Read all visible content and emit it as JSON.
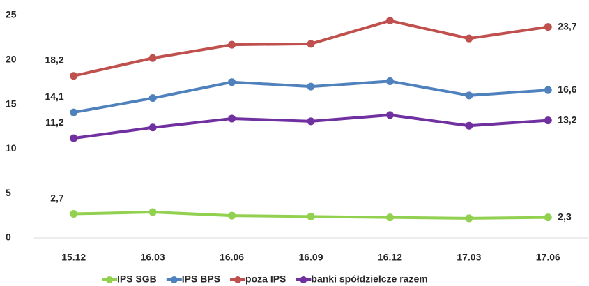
{
  "chart_data": {
    "type": "line",
    "categories": [
      "15.12",
      "16.03",
      "16.06",
      "16.09",
      "16.12",
      "17.03",
      "17.06"
    ],
    "series": [
      {
        "name": "IPS SGB",
        "color": "#92d050",
        "values": [
          2.7,
          2.9,
          2.5,
          2.4,
          2.3,
          2.2,
          2.3
        ],
        "value_labels": [
          "2,7",
          null,
          null,
          null,
          null,
          null,
          "2,3"
        ]
      },
      {
        "name": "IPS BPS",
        "color": "#4f81bd",
        "values": [
          14.1,
          15.7,
          17.5,
          17.0,
          17.6,
          16.0,
          16.6
        ],
        "value_labels": [
          "14,1",
          null,
          null,
          null,
          null,
          null,
          "16,6"
        ]
      },
      {
        "name": "poza IPS",
        "color": "#c0504d",
        "values": [
          18.2,
          20.2,
          21.7,
          21.8,
          24.4,
          22.4,
          23.7
        ],
        "value_labels": [
          "18,2",
          null,
          null,
          null,
          null,
          null,
          "23,7"
        ]
      },
      {
        "name": "banki spółdzielcze razem",
        "color": "#7030a0",
        "values": [
          11.2,
          12.4,
          13.4,
          13.1,
          13.8,
          12.6,
          13.2
        ],
        "value_labels": [
          "11,2",
          null,
          null,
          null,
          null,
          null,
          "13,2"
        ]
      }
    ],
    "ylim": [
      0,
      25
    ],
    "yticks": [
      0,
      5,
      10,
      15,
      20,
      25
    ],
    "grid": false
  }
}
